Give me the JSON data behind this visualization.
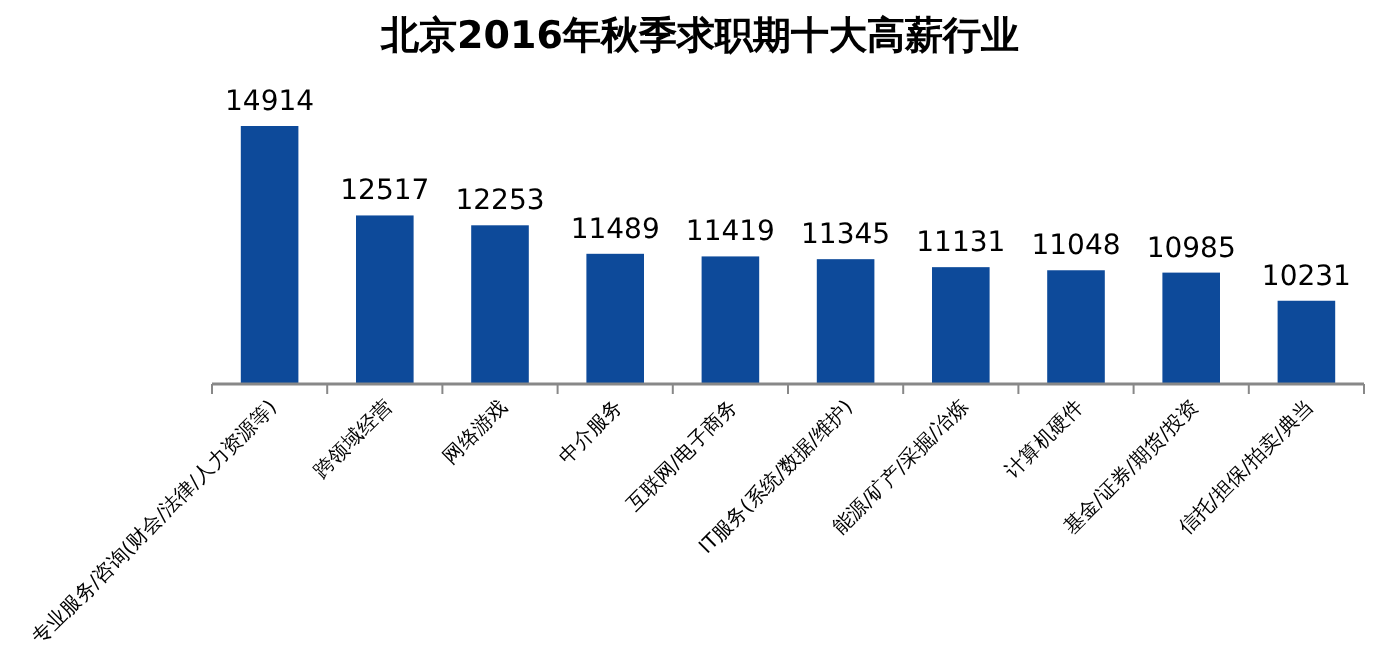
{
  "chart_data": {
    "type": "bar",
    "title": "北京2016年秋季求职期十大高薪行业",
    "categories": [
      "专业服务/咨询(财会/法律/人力资源等)",
      "跨领域经营",
      "网络游戏",
      "中介服务",
      "互联网/电子商务",
      "IT服务(系统/数据/维护)",
      "能源/矿产/采掘/冶炼",
      "计算机硬件",
      "基金/证券/期货/投资",
      "信托/担保/拍卖/典当"
    ],
    "values": [
      14914,
      12517,
      12253,
      11489,
      11419,
      11345,
      11131,
      11048,
      10985,
      10231
    ],
    "color": "#0d4a9a",
    "ylim": [
      8000,
      14914
    ],
    "data_labels": true,
    "tick_labels": "x"
  }
}
